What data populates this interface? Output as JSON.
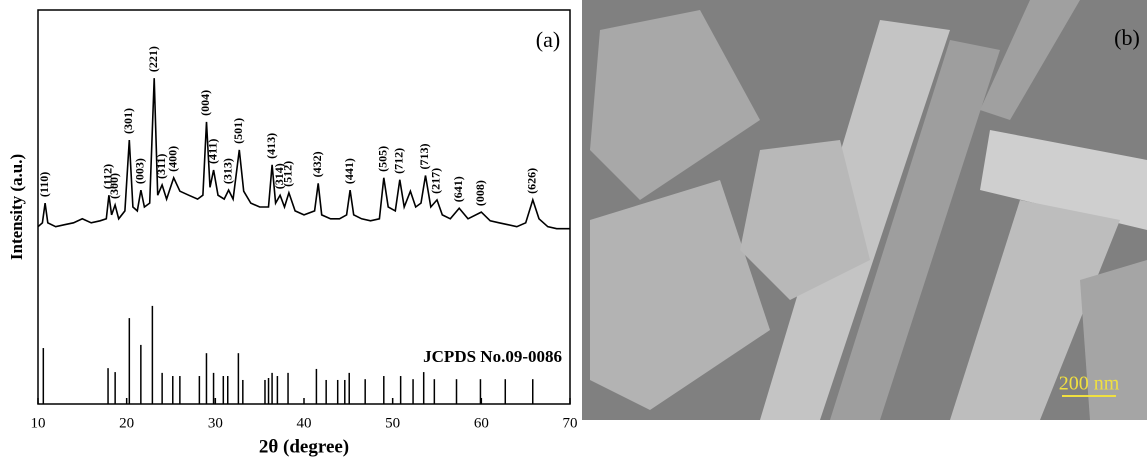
{
  "chart_data": {
    "type": "line",
    "xlabel": "2θ (degree)",
    "ylabel": "Intensity (a.u.)",
    "panel_label": "(a)",
    "xlim": [
      10,
      70
    ],
    "xticks": [
      10,
      20,
      30,
      40,
      50,
      60,
      70
    ],
    "ylim": [
      0,
      100
    ],
    "series": [
      {
        "type": "line",
        "color": "#000000",
        "x": [
          10,
          10.5,
          10.8,
          11.1,
          12,
          13,
          14,
          15,
          16,
          17,
          17.7,
          18,
          18.3,
          18.7,
          19.1,
          19.8,
          20.3,
          20.7,
          21.2,
          21.6,
          22,
          22.6,
          23.1,
          23.5,
          24,
          24.5,
          25.3,
          26,
          27,
          28,
          28.6,
          29,
          29.4,
          29.8,
          30.3,
          31,
          31.5,
          32,
          32.7,
          33.2,
          34,
          35,
          36,
          36.4,
          36.8,
          37.3,
          37.8,
          38.3,
          39,
          40,
          41.2,
          41.6,
          42,
          43,
          44,
          44.8,
          45.2,
          45.6,
          46.5,
          47.5,
          48.5,
          49,
          49.5,
          50.3,
          50.8,
          51.3,
          52,
          52.6,
          53.2,
          53.7,
          54.3,
          55,
          55.6,
          56.5,
          57.5,
          58.5,
          60,
          61,
          62,
          63,
          64,
          65,
          65.8,
          66.5,
          67.5,
          68.5,
          70
        ],
        "values": [
          45,
          46,
          51,
          46,
          45,
          45.5,
          46,
          47,
          46,
          46.5,
          47,
          53,
          48,
          50.5,
          47,
          49,
          67,
          50,
          49,
          54.3,
          50,
          51,
          82.7,
          53,
          55.6,
          52,
          57.4,
          54,
          53,
          52,
          53,
          71.6,
          55,
          59.4,
          53,
          52,
          54.3,
          52,
          64.5,
          54,
          51,
          50,
          50,
          60.7,
          51,
          53,
          50,
          53.6,
          49,
          48,
          49,
          56,
          48,
          47,
          47,
          48,
          54.3,
          48,
          47,
          46.5,
          47,
          57.4,
          50,
          49,
          56.9,
          50,
          54,
          50,
          51,
          58,
          50,
          51.8,
          48,
          47,
          49.7,
          47,
          48.7,
          46.5,
          46,
          45.5,
          45,
          46,
          51.8,
          47,
          45,
          44.5,
          44.5
        ]
      },
      {
        "type": "stick",
        "name": "JCPDS No.09-0086",
        "color": "#000000",
        "x": [
          10.6,
          17.9,
          18.7,
          20.3,
          21.6,
          22.9,
          24.0,
          25.2,
          26.0,
          28.2,
          29.0,
          29.8,
          30.9,
          31.4,
          32.6,
          33.1,
          35.6,
          36.0,
          36.4,
          37.0,
          38.2,
          41.4,
          42.5,
          43.8,
          44.6,
          45.1,
          46.9,
          49.0,
          50.9,
          52.3,
          53.5,
          54.7,
          57.2,
          59.9,
          62.7,
          65.8
        ],
        "values": [
          14.2,
          9.1,
          8.1,
          21.8,
          15,
          24.9,
          7.9,
          7.1,
          7.1,
          7.1,
          12.9,
          7.9,
          7.1,
          7.1,
          12.9,
          6.1,
          6.1,
          6.6,
          7.9,
          7.1,
          7.9,
          8.9,
          6.1,
          6.1,
          6.1,
          7.9,
          6.3,
          7.1,
          7.1,
          6.3,
          8.1,
          6.3,
          6.3,
          6.3,
          6.3,
          6.3
        ]
      }
    ],
    "peak_labels": [
      {
        "label": "(110)",
        "x": 10.8
      },
      {
        "label": "(112)",
        "x": 18.0
      },
      {
        "label": "(300)",
        "x": 18.7
      },
      {
        "label": "(301)",
        "x": 20.3
      },
      {
        "label": "(003)",
        "x": 21.6
      },
      {
        "label": "(221)",
        "x": 23.1
      },
      {
        "label": "(311)",
        "x": 24.0
      },
      {
        "label": "(400)",
        "x": 25.3
      },
      {
        "label": "(004)",
        "x": 29.0
      },
      {
        "label": "(411)",
        "x": 29.8
      },
      {
        "label": "(313)",
        "x": 31.5
      },
      {
        "label": "(501)",
        "x": 32.7
      },
      {
        "label": "(413)",
        "x": 36.4
      },
      {
        "label": "(314)",
        "x": 37.3
      },
      {
        "label": "(512)",
        "x": 38.3
      },
      {
        "label": "(432)",
        "x": 41.6
      },
      {
        "label": "(441)",
        "x": 45.2
      },
      {
        "label": "(505)",
        "x": 49.0
      },
      {
        "label": "(712)",
        "x": 50.8
      },
      {
        "label": "(713)",
        "x": 53.7
      },
      {
        "label": "(217)",
        "x": 55.0
      },
      {
        "label": "(641)",
        "x": 57.5
      },
      {
        "label": "(008)",
        "x": 60.0
      },
      {
        "label": "(626)",
        "x": 65.8
      }
    ]
  },
  "image_panel": {
    "label": "(b)",
    "scale_bar": "200 nm"
  }
}
